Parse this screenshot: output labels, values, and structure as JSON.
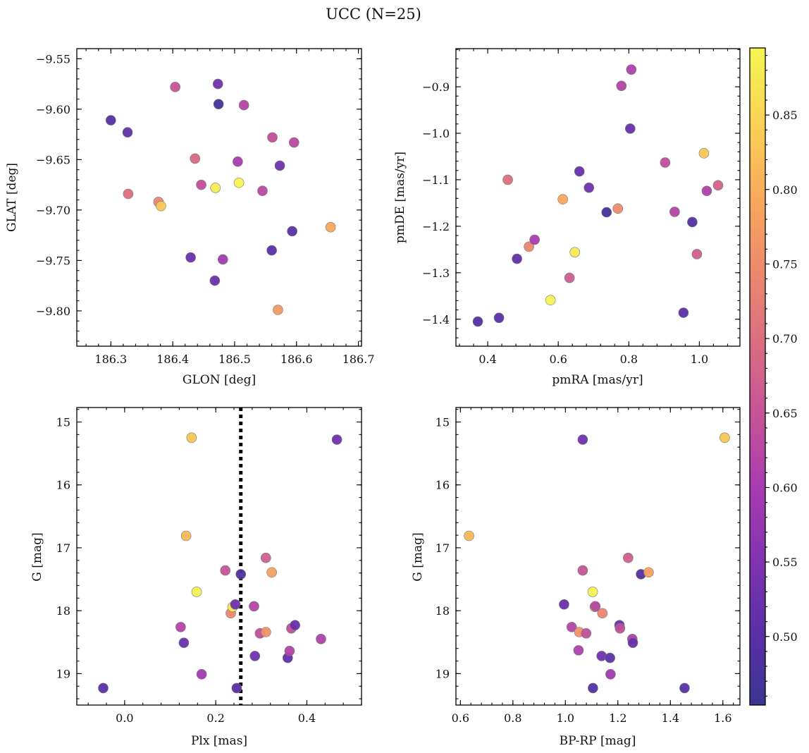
{
  "figure_title": "UCC (N=25)",
  "colormap_stops": [
    "#3b3591",
    "#5a2fa8",
    "#8233b0",
    "#a93cb0",
    "#c65497",
    "#dc6e80",
    "#ee8a6c",
    "#f8ab5c",
    "#fad355",
    "#f5f553"
  ],
  "chart_data": [
    {
      "type": "scatter",
      "id": "glon-glat",
      "xlabel": "GLON [deg]",
      "ylabel": "GLAT [deg]",
      "xlim": [
        186.245,
        186.705
      ],
      "ylim": [
        -9.835,
        -9.54
      ],
      "y_inverted": false,
      "xticks": [
        186.3,
        186.4,
        186.5,
        186.6,
        186.7
      ],
      "xtick_labels": [
        "186.3",
        "186.4",
        "186.5",
        "186.6",
        "186.7"
      ],
      "yticks": [
        -9.55,
        -9.6,
        -9.65,
        -9.7,
        -9.75,
        -9.8
      ],
      "ytick_labels": [
        "−9.55",
        "−9.60",
        "−9.65",
        "−9.70",
        "−9.75",
        "−9.80"
      ],
      "points": [
        {
          "x": 186.3,
          "y": -9.611,
          "c": 0.49
        },
        {
          "x": 186.327,
          "y": -9.623,
          "c": 0.51
        },
        {
          "x": 186.328,
          "y": -9.684,
          "c": 0.7
        },
        {
          "x": 186.377,
          "y": -9.692,
          "c": 0.74
        },
        {
          "x": 186.381,
          "y": -9.696,
          "c": 0.83
        },
        {
          "x": 186.404,
          "y": -9.578,
          "c": 0.65
        },
        {
          "x": 186.429,
          "y": -9.747,
          "c": 0.52
        },
        {
          "x": 186.436,
          "y": -9.649,
          "c": 0.69
        },
        {
          "x": 186.446,
          "y": -9.675,
          "c": 0.64
        },
        {
          "x": 186.468,
          "y": -9.77,
          "c": 0.52
        },
        {
          "x": 186.469,
          "y": -9.678,
          "c": 0.88
        },
        {
          "x": 186.473,
          "y": -9.575,
          "c": 0.53
        },
        {
          "x": 186.474,
          "y": -9.595,
          "c": 0.47
        },
        {
          "x": 186.481,
          "y": -9.749,
          "c": 0.59
        },
        {
          "x": 186.505,
          "y": -9.652,
          "c": 0.6
        },
        {
          "x": 186.507,
          "y": -9.673,
          "c": 0.89
        },
        {
          "x": 186.515,
          "y": -9.596,
          "c": 0.62
        },
        {
          "x": 186.545,
          "y": -9.681,
          "c": 0.63
        },
        {
          "x": 186.56,
          "y": -9.74,
          "c": 0.5
        },
        {
          "x": 186.561,
          "y": -9.628,
          "c": 0.64
        },
        {
          "x": 186.57,
          "y": -9.799,
          "c": 0.77
        },
        {
          "x": 186.573,
          "y": -9.656,
          "c": 0.53
        },
        {
          "x": 186.593,
          "y": -9.721,
          "c": 0.5
        },
        {
          "x": 186.596,
          "y": -9.633,
          "c": 0.63
        },
        {
          "x": 186.655,
          "y": -9.717,
          "c": 0.79
        }
      ]
    },
    {
      "type": "scatter",
      "id": "pmra-pmde",
      "xlabel": "pmRA [mas/yr]",
      "ylabel": "pmDE [mas/yr]",
      "xlim": [
        0.31,
        1.115
      ],
      "ylim": [
        -1.458,
        -0.818
      ],
      "y_inverted": false,
      "xticks": [
        0.4,
        0.6,
        0.8,
        1.0
      ],
      "xtick_labels": [
        "0.4",
        "0.6",
        "0.8",
        "1.0"
      ],
      "yticks": [
        -0.9,
        -1.0,
        -1.1,
        -1.2,
        -1.3,
        -1.4
      ],
      "ytick_labels": [
        "−0.9",
        "−1.0",
        "−1.1",
        "−1.2",
        "−1.3",
        "−1.4"
      ],
      "points": [
        {
          "x": 0.372,
          "y": -1.405,
          "c": 0.49
        },
        {
          "x": 0.432,
          "y": -1.397,
          "c": 0.5
        },
        {
          "x": 0.457,
          "y": -1.1,
          "c": 0.7
        },
        {
          "x": 0.483,
          "y": -1.27,
          "c": 0.51
        },
        {
          "x": 0.517,
          "y": -1.244,
          "c": 0.74
        },
        {
          "x": 0.533,
          "y": -1.229,
          "c": 0.6
        },
        {
          "x": 0.578,
          "y": -1.359,
          "c": 0.89
        },
        {
          "x": 0.613,
          "y": -1.142,
          "c": 0.79
        },
        {
          "x": 0.632,
          "y": -1.311,
          "c": 0.67
        },
        {
          "x": 0.647,
          "y": -1.256,
          "c": 0.88
        },
        {
          "x": 0.66,
          "y": -1.082,
          "c": 0.52
        },
        {
          "x": 0.687,
          "y": -1.117,
          "c": 0.53
        },
        {
          "x": 0.737,
          "y": -1.17,
          "c": 0.47
        },
        {
          "x": 0.769,
          "y": -1.162,
          "c": 0.75
        },
        {
          "x": 0.779,
          "y": -0.898,
          "c": 0.62
        },
        {
          "x": 0.804,
          "y": -0.99,
          "c": 0.52
        },
        {
          "x": 0.807,
          "y": -0.863,
          "c": 0.61
        },
        {
          "x": 0.903,
          "y": -1.063,
          "c": 0.64
        },
        {
          "x": 0.93,
          "y": -1.169,
          "c": 0.62
        },
        {
          "x": 0.955,
          "y": -1.386,
          "c": 0.5
        },
        {
          "x": 0.98,
          "y": -1.191,
          "c": 0.49
        },
        {
          "x": 0.993,
          "y": -1.26,
          "c": 0.67
        },
        {
          "x": 1.013,
          "y": -1.043,
          "c": 0.83
        },
        {
          "x": 1.021,
          "y": -1.124,
          "c": 0.61
        },
        {
          "x": 1.053,
          "y": -1.112,
          "c": 0.68
        }
      ]
    },
    {
      "type": "scatter",
      "id": "plx-g",
      "xlabel": "Plx [mas]",
      "ylabel": "G [mag]",
      "xlim": [
        -0.105,
        0.52
      ],
      "ylim": [
        19.5,
        14.77
      ],
      "y_inverted": true,
      "xticks": [
        0.0,
        0.2,
        0.4
      ],
      "xtick_labels": [
        "0.0",
        "0.2",
        "0.4"
      ],
      "yticks": [
        15,
        16,
        17,
        18,
        19
      ],
      "ytick_labels": [
        "15",
        "16",
        "17",
        "18",
        "19"
      ],
      "vline": {
        "x": 0.255,
        "style": "dotted"
      },
      "points": [
        {
          "x": -0.047,
          "y": 19.23,
          "c": 0.5
        },
        {
          "x": 0.123,
          "y": 18.26,
          "c": 0.62
        },
        {
          "x": 0.13,
          "y": 18.51,
          "c": 0.52
        },
        {
          "x": 0.135,
          "y": 16.81,
          "c": 0.81
        },
        {
          "x": 0.147,
          "y": 15.25,
          "c": 0.83
        },
        {
          "x": 0.158,
          "y": 17.7,
          "c": 0.89
        },
        {
          "x": 0.169,
          "y": 19.01,
          "c": 0.59
        },
        {
          "x": 0.221,
          "y": 17.36,
          "c": 0.65
        },
        {
          "x": 0.233,
          "y": 18.04,
          "c": 0.74
        },
        {
          "x": 0.237,
          "y": 17.94,
          "c": 0.88
        },
        {
          "x": 0.243,
          "y": 17.9,
          "c": 0.53
        },
        {
          "x": 0.246,
          "y": 19.23,
          "c": 0.49
        },
        {
          "x": 0.255,
          "y": 17.42,
          "c": 0.49
        },
        {
          "x": 0.284,
          "y": 17.93,
          "c": 0.62
        },
        {
          "x": 0.286,
          "y": 18.72,
          "c": 0.53
        },
        {
          "x": 0.297,
          "y": 18.36,
          "c": 0.64
        },
        {
          "x": 0.31,
          "y": 17.16,
          "c": 0.67
        },
        {
          "x": 0.31,
          "y": 18.34,
          "c": 0.76
        },
        {
          "x": 0.323,
          "y": 17.39,
          "c": 0.78
        },
        {
          "x": 0.358,
          "y": 18.75,
          "c": 0.51
        },
        {
          "x": 0.362,
          "y": 18.64,
          "c": 0.62
        },
        {
          "x": 0.366,
          "y": 18.28,
          "c": 0.64
        },
        {
          "x": 0.374,
          "y": 18.23,
          "c": 0.52
        },
        {
          "x": 0.431,
          "y": 18.45,
          "c": 0.61
        },
        {
          "x": 0.466,
          "y": 15.28,
          "c": 0.53
        }
      ]
    },
    {
      "type": "scatter",
      "id": "bprp-g",
      "xlabel": "BP-RP [mag]",
      "ylabel": "G [mag]",
      "xlim": [
        0.583,
        1.665
      ],
      "ylim": [
        19.5,
        14.77
      ],
      "y_inverted": true,
      "xticks": [
        0.6,
        0.8,
        1.0,
        1.2,
        1.4,
        1.6
      ],
      "xtick_labels": [
        "0.6",
        "0.8",
        "1.0",
        "1.2",
        "1.4",
        "1.6"
      ],
      "yticks": [
        15,
        16,
        17,
        18,
        19
      ],
      "ytick_labels": [
        "15",
        "16",
        "17",
        "18",
        "19"
      ],
      "points": [
        {
          "x": 0.633,
          "y": 16.81,
          "c": 0.81
        },
        {
          "x": 0.995,
          "y": 17.9,
          "c": 0.52
        },
        {
          "x": 1.024,
          "y": 18.26,
          "c": 0.62
        },
        {
          "x": 1.05,
          "y": 18.63,
          "c": 0.61
        },
        {
          "x": 1.053,
          "y": 18.34,
          "c": 0.76
        },
        {
          "x": 1.066,
          "y": 17.36,
          "c": 0.65
        },
        {
          "x": 1.066,
          "y": 15.28,
          "c": 0.53
        },
        {
          "x": 1.079,
          "y": 18.36,
          "c": 0.64
        },
        {
          "x": 1.104,
          "y": 17.7,
          "c": 0.89
        },
        {
          "x": 1.105,
          "y": 19.23,
          "c": 0.49
        },
        {
          "x": 1.112,
          "y": 17.94,
          "c": 0.88
        },
        {
          "x": 1.114,
          "y": 17.93,
          "c": 0.62
        },
        {
          "x": 1.138,
          "y": 18.72,
          "c": 0.53
        },
        {
          "x": 1.141,
          "y": 18.04,
          "c": 0.74
        },
        {
          "x": 1.17,
          "y": 18.75,
          "c": 0.51
        },
        {
          "x": 1.172,
          "y": 19.01,
          "c": 0.59
        },
        {
          "x": 1.206,
          "y": 18.23,
          "c": 0.52
        },
        {
          "x": 1.208,
          "y": 18.28,
          "c": 0.64
        },
        {
          "x": 1.239,
          "y": 17.16,
          "c": 0.67
        },
        {
          "x": 1.255,
          "y": 18.45,
          "c": 0.61
        },
        {
          "x": 1.257,
          "y": 18.51,
          "c": 0.52
        },
        {
          "x": 1.288,
          "y": 17.42,
          "c": 0.49
        },
        {
          "x": 1.317,
          "y": 17.39,
          "c": 0.78
        },
        {
          "x": 1.454,
          "y": 19.23,
          "c": 0.5
        },
        {
          "x": 1.607,
          "y": 15.25,
          "c": 0.83
        }
      ]
    }
  ],
  "colorbar": {
    "range": [
      0.454,
      0.895
    ],
    "ticks": [
      0.5,
      0.55,
      0.6,
      0.65,
      0.7,
      0.75,
      0.8,
      0.85
    ],
    "tick_labels": [
      "0.50",
      "0.55",
      "0.60",
      "0.65",
      "0.70",
      "0.75",
      "0.80",
      "0.85"
    ]
  }
}
